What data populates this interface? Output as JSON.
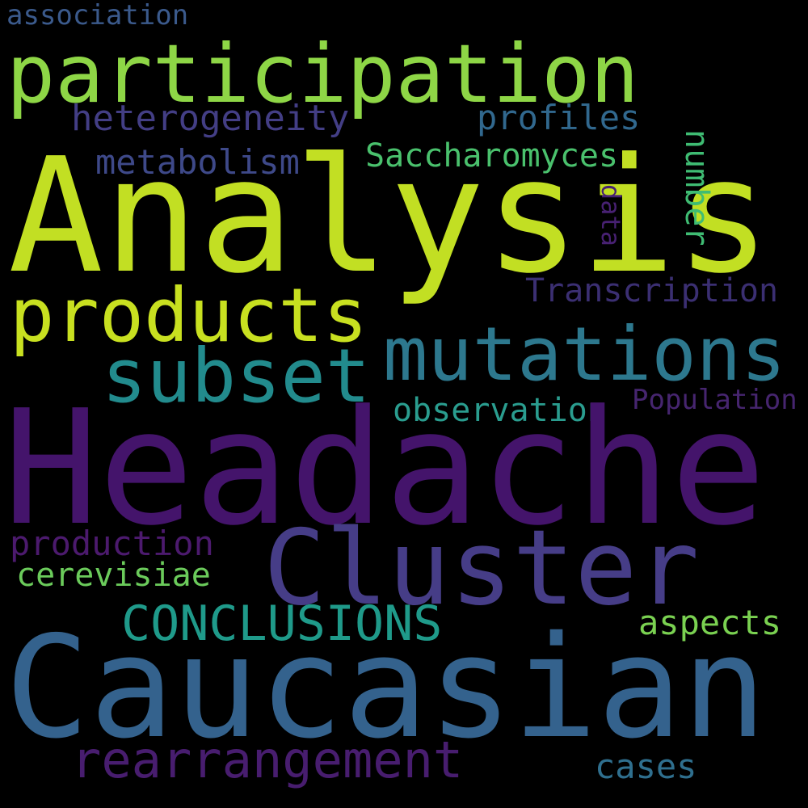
{
  "words": {
    "association": {
      "text": "association",
      "color": "#3b5a8c"
    },
    "participation": {
      "text": "participation",
      "color": "#8ed646"
    },
    "heterogeneity": {
      "text": "heterogeneity",
      "color": "#433e85"
    },
    "profiles": {
      "text": "profiles",
      "color": "#31688e"
    },
    "analysis": {
      "text": "Analysis",
      "color": "#c2df23"
    },
    "metabolism": {
      "text": "metabolism",
      "color": "#3e4989"
    },
    "saccharomyces": {
      "text": "Saccharomyces",
      "color": "#4ac16d"
    },
    "number": {
      "text": "number",
      "color": "#3fbc73"
    },
    "data": {
      "text": "data",
      "color": "#482173"
    },
    "products": {
      "text": "products",
      "color": "#c8e020"
    },
    "transcription": {
      "text": "Transcription",
      "color": "#3b2f72"
    },
    "mutations": {
      "text": "mutations",
      "color": "#2d788e"
    },
    "subset": {
      "text": "subset",
      "color": "#228b8d"
    },
    "observation": {
      "text": "observation",
      "color": "#2a9d8f"
    },
    "population": {
      "text": "Population",
      "color": "#46256f"
    },
    "headache": {
      "text": "Headache",
      "color": "#44146b"
    },
    "cluster": {
      "text": "Cluster",
      "color": "#463d87"
    },
    "production": {
      "text": "production",
      "color": "#4c1a6e"
    },
    "cerevisiae": {
      "text": "cerevisiae",
      "color": "#6bcb5b"
    },
    "conclusions": {
      "text": "CONCLUSIONS",
      "color": "#1f9a8a"
    },
    "aspects": {
      "text": "aspects",
      "color": "#7ad151"
    },
    "caucasian": {
      "text": "Caucasian",
      "color": "#34628d"
    },
    "rearrangement": {
      "text": "rearrangement",
      "color": "#481d6f"
    },
    "cases": {
      "text": "cases",
      "color": "#2f6f8e"
    }
  }
}
